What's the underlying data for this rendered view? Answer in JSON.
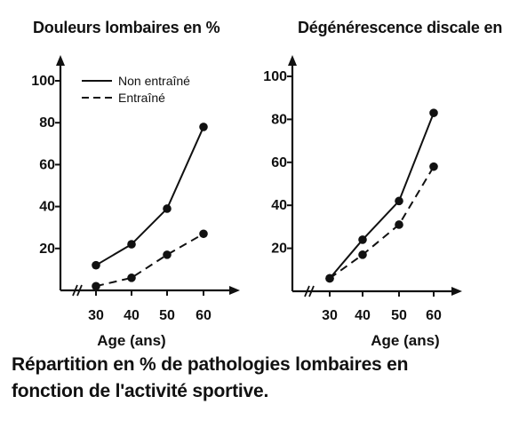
{
  "chart_data": [
    {
      "type": "line",
      "title": "Douleurs lombaires en %",
      "xlabel": "Age (ans)",
      "ylabel": "",
      "categories": [
        "30",
        "40",
        "50",
        "60"
      ],
      "x": [
        30,
        40,
        50,
        60
      ],
      "yticks": [
        "20",
        "40",
        "60",
        "80",
        "100"
      ],
      "ylim": [
        0,
        105
      ],
      "legend_placement": "top-left",
      "series": [
        {
          "name": "Non entraîné",
          "style": "solid",
          "values": [
            12,
            22,
            39,
            78
          ]
        },
        {
          "name": "Entraîné",
          "style": "dashed",
          "values": [
            2,
            6,
            17,
            27
          ]
        }
      ]
    },
    {
      "type": "line",
      "title": "Dégénérescence discale en",
      "xlabel": "Age (ans)",
      "ylabel": "",
      "categories": [
        "30",
        "40",
        "50",
        "60"
      ],
      "x": [
        30,
        40,
        50,
        60
      ],
      "yticks": [
        "20",
        "40",
        "60",
        "80",
        "100"
      ],
      "ylim": [
        0,
        105
      ],
      "series": [
        {
          "style": "solid",
          "values": [
            6,
            24,
            42,
            83
          ]
        },
        {
          "style": "dashed",
          "values": [
            6,
            17,
            31,
            58
          ]
        }
      ]
    }
  ],
  "caption": {
    "line1": "Répartition en % de pathologies lombaires en",
    "line2": "fonction de l'activité sportive."
  },
  "colors": {
    "ink": "#111111",
    "background": "#ffffff"
  }
}
